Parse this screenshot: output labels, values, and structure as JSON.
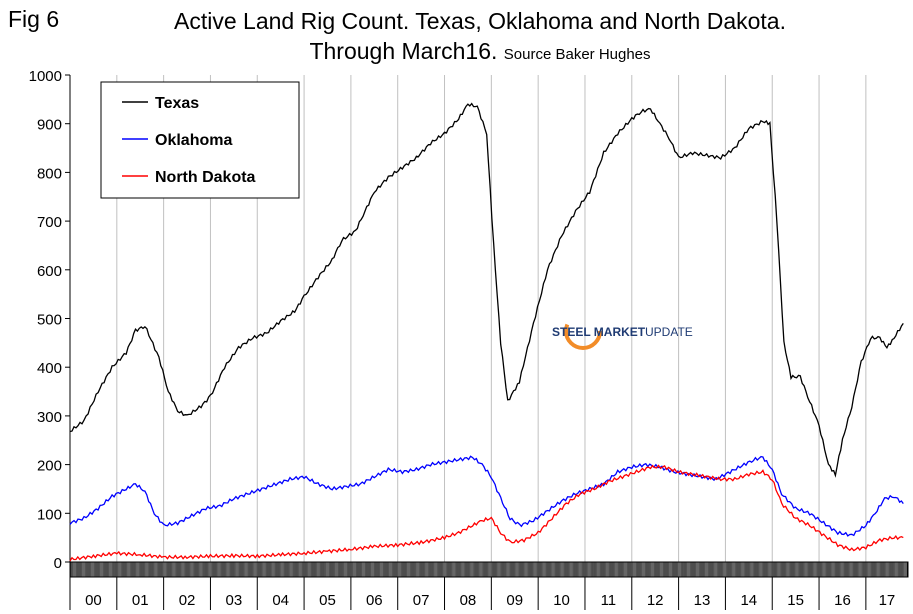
{
  "figure": {
    "fig_label": "Fig 6",
    "title_line1": "Active Land Rig Count. Texas, Oklahoma and North Dakota.",
    "title_line2": "Through March16.",
    "source": "Source Baker Hughes",
    "watermark_bold": "STEEL MARKET",
    "watermark_light": "UPDATE"
  },
  "colors": {
    "Texas": "#000000",
    "Oklahoma": "#0000ff",
    "North Dakota": "#ff0000",
    "grid": "#c0c0c0"
  },
  "chart_data": {
    "type": "line",
    "title": "Active Land Rig Count. Texas, Oklahoma and North Dakota. Through March16.",
    "xlabel": "",
    "ylabel": "",
    "ylim": [
      0,
      1000
    ],
    "xlim": [
      2000.0,
      2017.9
    ],
    "yticks": [
      "0",
      "100",
      "200",
      "300",
      "400",
      "500",
      "600",
      "700",
      "800",
      "900",
      "1000"
    ],
    "xtick_labels": [
      "00",
      "01",
      "02",
      "03",
      "04",
      "05",
      "06",
      "07",
      "08",
      "09",
      "10",
      "11",
      "12",
      "13",
      "14",
      "15",
      "16",
      "17"
    ],
    "grid": "vertical",
    "legend_position": "top-left",
    "series": [
      {
        "name": "Texas",
        "color": "#000000",
        "x": [
          2000.0,
          2000.3,
          2000.6,
          2000.9,
          2001.2,
          2001.4,
          2001.6,
          2001.9,
          2002.1,
          2002.3,
          2002.5,
          2002.8,
          2003.0,
          2003.3,
          2003.6,
          2003.9,
          2004.2,
          2004.5,
          2004.8,
          2005.0,
          2005.3,
          2005.6,
          2005.8,
          2006.1,
          2006.3,
          2006.5,
          2006.8,
          2007.1,
          2007.4,
          2007.7,
          2008.0,
          2008.3,
          2008.5,
          2008.7,
          2008.9,
          2009.05,
          2009.2,
          2009.35,
          2009.6,
          2009.9,
          2010.2,
          2010.5,
          2010.8,
          2011.1,
          2011.4,
          2011.7,
          2012.0,
          2012.2,
          2012.4,
          2012.6,
          2012.8,
          2013.0,
          2013.3,
          2013.6,
          2013.9,
          2014.2,
          2014.5,
          2014.8,
          2014.95,
          2015.1,
          2015.25,
          2015.4,
          2015.6,
          2015.8,
          2016.0,
          2016.2,
          2016.35,
          2016.5,
          2016.7,
          2016.9,
          2017.1,
          2017.3,
          2017.45,
          2017.6,
          2017.8
        ],
        "values": [
          268,
          290,
          350,
          400,
          430,
          475,
          485,
          420,
          350,
          310,
          300,
          320,
          340,
          400,
          440,
          460,
          470,
          495,
          515,
          545,
          585,
          620,
          660,
          680,
          720,
          760,
          790,
          810,
          830,
          860,
          880,
          910,
          940,
          935,
          880,
          650,
          450,
          330,
          370,
          490,
          600,
          670,
          720,
          760,
          840,
          880,
          910,
          925,
          930,
          900,
          870,
          830,
          840,
          835,
          830,
          850,
          890,
          905,
          900,
          700,
          450,
          380,
          380,
          330,
          280,
          200,
          180,
          250,
          320,
          410,
          460,
          460,
          440,
          460,
          490
        ]
      },
      {
        "name": "Oklahoma",
        "color": "#0000ff",
        "x": [
          2000.0,
          2000.3,
          2000.6,
          2000.9,
          2001.2,
          2001.4,
          2001.6,
          2001.8,
          2002.0,
          2002.3,
          2002.6,
          2002.9,
          2003.2,
          2003.5,
          2003.8,
          2004.1,
          2004.4,
          2004.7,
          2005.0,
          2005.3,
          2005.6,
          2005.9,
          2006.2,
          2006.5,
          2006.8,
          2007.1,
          2007.4,
          2007.7,
          2008.0,
          2008.3,
          2008.6,
          2008.8,
          2009.0,
          2009.2,
          2009.4,
          2009.6,
          2009.9,
          2010.2,
          2010.5,
          2010.8,
          2011.1,
          2011.4,
          2011.7,
          2012.0,
          2012.3,
          2012.6,
          2012.9,
          2013.2,
          2013.5,
          2013.8,
          2014.1,
          2014.4,
          2014.6,
          2014.8,
          2015.0,
          2015.2,
          2015.5,
          2015.8,
          2016.1,
          2016.4,
          2016.7,
          2017.0,
          2017.2,
          2017.4,
          2017.6,
          2017.8
        ],
        "values": [
          80,
          90,
          110,
          135,
          150,
          160,
          145,
          100,
          75,
          80,
          95,
          110,
          115,
          130,
          140,
          150,
          160,
          170,
          175,
          160,
          150,
          155,
          160,
          175,
          190,
          185,
          190,
          200,
          205,
          210,
          215,
          200,
          175,
          130,
          90,
          75,
          85,
          105,
          125,
          140,
          150,
          160,
          185,
          195,
          200,
          195,
          185,
          180,
          175,
          170,
          185,
          200,
          210,
          215,
          190,
          140,
          110,
          100,
          80,
          60,
          55,
          75,
          100,
          130,
          135,
          120
        ]
      },
      {
        "name": "North Dakota",
        "color": "#ff0000",
        "x": [
          2000.0,
          2000.5,
          2001.0,
          2001.5,
          2002.0,
          2002.5,
          2003.0,
          2003.5,
          2004.0,
          2004.5,
          2005.0,
          2005.5,
          2006.0,
          2006.5,
          2007.0,
          2007.5,
          2008.0,
          2008.3,
          2008.6,
          2008.8,
          2009.0,
          2009.2,
          2009.4,
          2009.7,
          2010.0,
          2010.3,
          2010.6,
          2010.9,
          2011.2,
          2011.5,
          2011.8,
          2012.1,
          2012.4,
          2012.7,
          2013.0,
          2013.3,
          2013.6,
          2013.9,
          2014.2,
          2014.5,
          2014.8,
          2015.0,
          2015.2,
          2015.5,
          2015.8,
          2016.1,
          2016.4,
          2016.7,
          2017.0,
          2017.3,
          2017.6,
          2017.8
        ],
        "values": [
          5,
          12,
          18,
          15,
          10,
          10,
          12,
          13,
          12,
          15,
          18,
          22,
          26,
          32,
          35,
          40,
          50,
          60,
          75,
          85,
          90,
          60,
          40,
          45,
          60,
          90,
          120,
          140,
          150,
          165,
          175,
          185,
          195,
          195,
          185,
          180,
          175,
          170,
          170,
          180,
          185,
          170,
          120,
          90,
          75,
          55,
          35,
          25,
          30,
          45,
          50,
          50
        ]
      }
    ]
  }
}
